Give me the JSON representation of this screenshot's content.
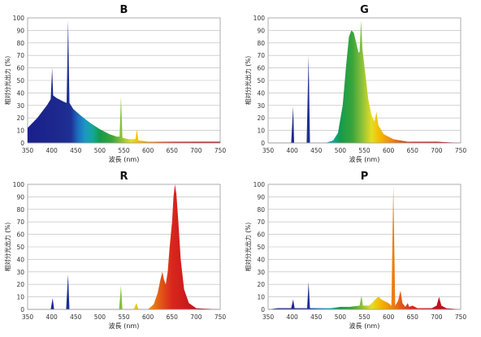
{
  "chart_data": [
    {
      "type": "area",
      "title": "B",
      "xlabel": "波長 (nm)",
      "ylabel": "相対分光出力 (%)",
      "xlim": [
        350,
        750
      ],
      "ylim": [
        0,
        100
      ],
      "xticks": [
        350,
        400,
        450,
        500,
        550,
        600,
        650,
        700,
        750
      ],
      "yticks": [
        0,
        10,
        20,
        30,
        40,
        50,
        60,
        70,
        80,
        90,
        100
      ],
      "grid": true,
      "color_fill": "spectrum",
      "points": [
        [
          350,
          12
        ],
        [
          370,
          20
        ],
        [
          390,
          30
        ],
        [
          398,
          35
        ],
        [
          401,
          60
        ],
        [
          403,
          38
        ],
        [
          410,
          36
        ],
        [
          425,
          33
        ],
        [
          431,
          32
        ],
        [
          434,
          98
        ],
        [
          437,
          32
        ],
        [
          445,
          27
        ],
        [
          460,
          22
        ],
        [
          480,
          16
        ],
        [
          500,
          11
        ],
        [
          520,
          7
        ],
        [
          535,
          5
        ],
        [
          541,
          5
        ],
        [
          544,
          37
        ],
        [
          547,
          4
        ],
        [
          560,
          3
        ],
        [
          574,
          3
        ],
        [
          577,
          11
        ],
        [
          580,
          2
        ],
        [
          600,
          1
        ],
        [
          650,
          1
        ],
        [
          700,
          1
        ],
        [
          750,
          1
        ]
      ]
    },
    {
      "type": "area",
      "title": "G",
      "xlabel": "波長 (nm)",
      "ylabel": "相対分光出力 (%)",
      "xlim": [
        350,
        750
      ],
      "ylim": [
        0,
        100
      ],
      "xticks": [
        350,
        400,
        450,
        500,
        550,
        600,
        650,
        700,
        750
      ],
      "yticks": [
        0,
        10,
        20,
        30,
        40,
        50,
        60,
        70,
        80,
        90,
        100
      ],
      "grid": true,
      "color_fill": "spectrum",
      "points": [
        [
          350,
          0
        ],
        [
          398,
          0
        ],
        [
          402,
          29
        ],
        [
          404,
          0
        ],
        [
          430,
          0
        ],
        [
          434,
          70
        ],
        [
          437,
          0
        ],
        [
          470,
          0
        ],
        [
          485,
          2
        ],
        [
          495,
          8
        ],
        [
          505,
          30
        ],
        [
          512,
          62
        ],
        [
          518,
          85
        ],
        [
          523,
          90
        ],
        [
          528,
          88
        ],
        [
          533,
          80
        ],
        [
          538,
          72
        ],
        [
          540,
          73
        ],
        [
          543,
          98
        ],
        [
          546,
          75
        ],
        [
          552,
          55
        ],
        [
          558,
          35
        ],
        [
          565,
          22
        ],
        [
          571,
          17
        ],
        [
          575,
          25
        ],
        [
          579,
          14
        ],
        [
          590,
          7
        ],
        [
          610,
          3
        ],
        [
          640,
          1
        ],
        [
          700,
          1
        ],
        [
          750,
          0
        ]
      ]
    },
    {
      "type": "area",
      "title": "R",
      "xlabel": "波長 (nm)",
      "ylabel": "相対分光出力 (%)",
      "xlim": [
        350,
        750
      ],
      "ylim": [
        0,
        100
      ],
      "xticks": [
        350,
        400,
        450,
        500,
        550,
        600,
        650,
        700,
        750
      ],
      "yticks": [
        0,
        10,
        20,
        30,
        40,
        50,
        60,
        70,
        80,
        90,
        100
      ],
      "grid": true,
      "color_fill": "spectrum",
      "points": [
        [
          350,
          0
        ],
        [
          398,
          0
        ],
        [
          402,
          9
        ],
        [
          405,
          0
        ],
        [
          430,
          0
        ],
        [
          434,
          28
        ],
        [
          437,
          0
        ],
        [
          540,
          0
        ],
        [
          544,
          19
        ],
        [
          547,
          0
        ],
        [
          570,
          0
        ],
        [
          576,
          5
        ],
        [
          580,
          0
        ],
        [
          600,
          0
        ],
        [
          612,
          4
        ],
        [
          620,
          13
        ],
        [
          626,
          24
        ],
        [
          630,
          30
        ],
        [
          633,
          24
        ],
        [
          637,
          20
        ],
        [
          641,
          30
        ],
        [
          645,
          50
        ],
        [
          650,
          70
        ],
        [
          653,
          90
        ],
        [
          656,
          100
        ],
        [
          659,
          92
        ],
        [
          663,
          70
        ],
        [
          668,
          40
        ],
        [
          675,
          16
        ],
        [
          685,
          5
        ],
        [
          700,
          1
        ],
        [
          750,
          0
        ]
      ]
    },
    {
      "type": "area",
      "title": "P",
      "xlabel": "波長 (nm)",
      "ylabel": "相対分光出力 (%)",
      "xlim": [
        350,
        750
      ],
      "ylim": [
        0,
        100
      ],
      "xticks": [
        350,
        400,
        450,
        500,
        550,
        600,
        650,
        700,
        750
      ],
      "yticks": [
        0,
        10,
        20,
        30,
        40,
        50,
        60,
        70,
        80,
        90,
        100
      ],
      "grid": true,
      "color_fill": "spectrum",
      "points": [
        [
          350,
          0
        ],
        [
          370,
          1
        ],
        [
          398,
          1
        ],
        [
          402,
          8
        ],
        [
          405,
          1
        ],
        [
          431,
          1
        ],
        [
          434,
          22
        ],
        [
          437,
          1
        ],
        [
          480,
          1
        ],
        [
          500,
          2
        ],
        [
          520,
          2
        ],
        [
          540,
          3
        ],
        [
          544,
          11
        ],
        [
          547,
          3
        ],
        [
          560,
          3
        ],
        [
          568,
          6
        ],
        [
          575,
          9
        ],
        [
          580,
          10
        ],
        [
          585,
          8
        ],
        [
          590,
          7
        ],
        [
          595,
          6
        ],
        [
          600,
          5
        ],
        [
          606,
          3
        ],
        [
          610,
          99
        ],
        [
          614,
          3
        ],
        [
          620,
          7
        ],
        [
          625,
          15
        ],
        [
          629,
          5
        ],
        [
          635,
          2
        ],
        [
          640,
          5
        ],
        [
          643,
          2
        ],
        [
          650,
          3
        ],
        [
          660,
          1
        ],
        [
          690,
          1
        ],
        [
          700,
          3
        ],
        [
          705,
          10
        ],
        [
          710,
          3
        ],
        [
          720,
          1
        ],
        [
          750,
          0
        ]
      ]
    }
  ]
}
